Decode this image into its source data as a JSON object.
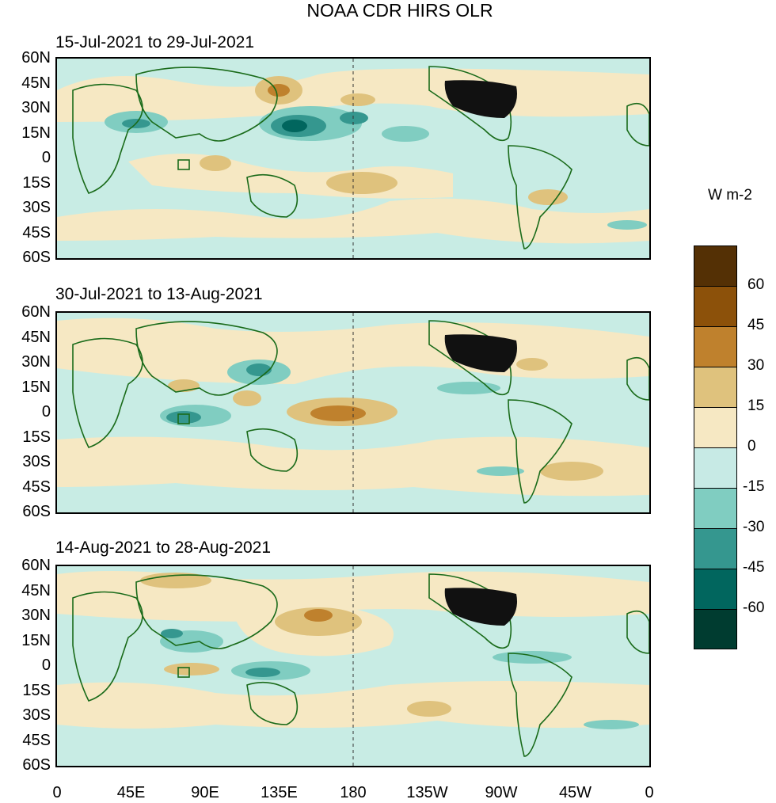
{
  "title": "NOAA CDR HIRS OLR",
  "panels": [
    {
      "title": "15-Jul-2021 to 29-Jul-2021"
    },
    {
      "title": "30-Jul-2021 to 13-Aug-2021"
    },
    {
      "title": "14-Aug-2021 to 28-Aug-2021"
    }
  ],
  "lat_labels": [
    "60N",
    "45N",
    "30N",
    "15N",
    "0",
    "15S",
    "30S",
    "45S",
    "60S"
  ],
  "lon_labels": [
    "0",
    "45E",
    "90E",
    "135E",
    "180",
    "135W",
    "90W",
    "45W",
    "0"
  ],
  "colorbar": {
    "unit": "W m-2",
    "labels": [
      "60",
      "45",
      "30",
      "15",
      "0",
      "-15",
      "-30",
      "-45",
      "-60"
    ],
    "colors": [
      "#543005",
      "#8c510a",
      "#bf812d",
      "#dfc27d",
      "#f6e8c3",
      "#c7eae5",
      "#80cdc1",
      "#35978f",
      "#01665e",
      "#003c30"
    ]
  },
  "land_color": "#1a6b1a",
  "dateline_color": "#333333"
}
